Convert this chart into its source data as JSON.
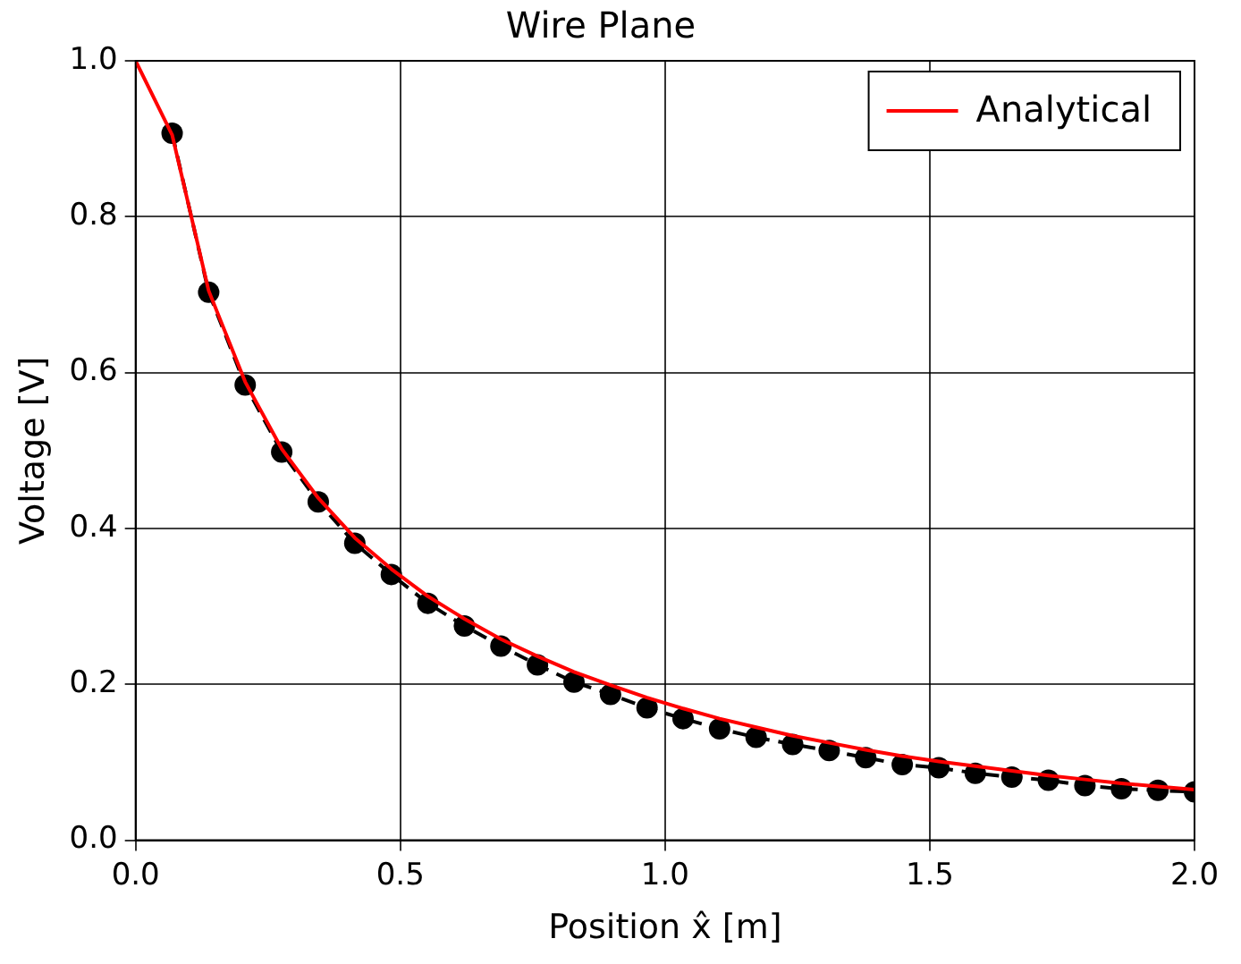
{
  "chart_data": {
    "type": "line",
    "title": "Wire Plane",
    "xlabel": "Position x̂ [m]",
    "ylabel": "Voltage [V]",
    "xlim": [
      0,
      2.0
    ],
    "ylim": [
      0,
      1.0
    ],
    "xticks": [
      {
        "value": 0,
        "label": "0.0"
      },
      0.5,
      {
        "value": 1,
        "label": "1.0"
      },
      1.5,
      {
        "value": 2,
        "label": "2.0"
      }
    ],
    "yticks": [
      {
        "value": 0,
        "label": "0.0"
      },
      0.2,
      0.4,
      0.6,
      0.8,
      {
        "value": 1,
        "label": "1.0"
      }
    ],
    "grid": true,
    "legend": "top right",
    "series": [
      {
        "name": "Analytical",
        "color": "#ff0000",
        "marker": "none",
        "line_style": "solid",
        "x": [
          0,
          0.069,
          0.138,
          0.207,
          0.276,
          0.345,
          0.414,
          0.483,
          0.552,
          0.621,
          0.69,
          0.759,
          0.828,
          0.897,
          0.966,
          1.034,
          1.103,
          1.172,
          1.241,
          1.31,
          1.379,
          1.448,
          1.517,
          1.586,
          1.655,
          1.724,
          1.793,
          1.862,
          1.931,
          2.0
        ],
        "values": [
          1.0,
          0.905,
          0.705,
          0.588,
          0.502,
          0.439,
          0.388,
          0.348,
          0.313,
          0.284,
          0.258,
          0.236,
          0.216,
          0.199,
          0.183,
          0.169,
          0.156,
          0.145,
          0.134,
          0.125,
          0.116,
          0.108,
          0.101,
          0.095,
          0.089,
          0.083,
          0.078,
          0.073,
          0.069,
          0.065
        ]
      },
      {
        "color": "#000000",
        "marker": "circle",
        "line_style": "dashed",
        "x": [
          0.069,
          0.138,
          0.207,
          0.276,
          0.345,
          0.414,
          0.483,
          0.552,
          0.621,
          0.69,
          0.759,
          0.828,
          0.897,
          0.966,
          1.034,
          1.103,
          1.172,
          1.241,
          1.31,
          1.379,
          1.448,
          1.517,
          1.586,
          1.655,
          1.724,
          1.793,
          1.862,
          1.931,
          2.0
        ],
        "values": [
          0.907,
          0.703,
          0.584,
          0.498,
          0.434,
          0.381,
          0.341,
          0.304,
          0.275,
          0.249,
          0.225,
          0.203,
          0.187,
          0.17,
          0.156,
          0.143,
          0.132,
          0.123,
          0.115,
          0.106,
          0.097,
          0.093,
          0.086,
          0.081,
          0.077,
          0.07,
          0.066,
          0.064,
          0.062
        ]
      }
    ]
  }
}
